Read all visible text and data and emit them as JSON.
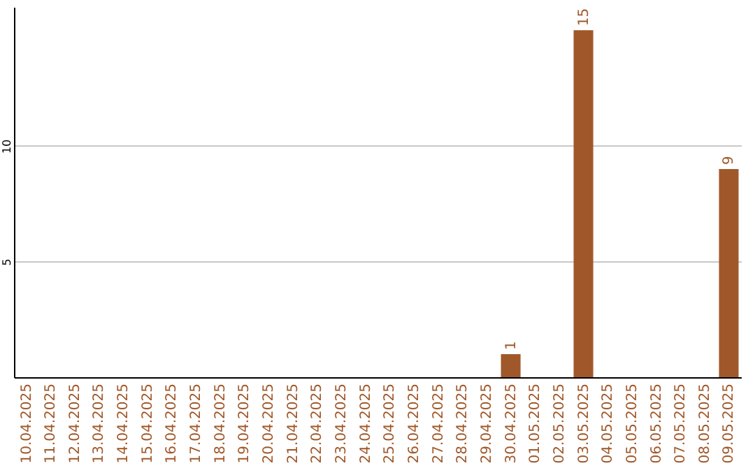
{
  "chart_data": {
    "type": "bar",
    "categories": [
      "10.04.2025",
      "11.04.2025",
      "12.04.2025",
      "13.04.2025",
      "14.04.2025",
      "15.04.2025",
      "16.04.2025",
      "17.04.2025",
      "18.04.2025",
      "19.04.2025",
      "20.04.2025",
      "21.04.2025",
      "22.04.2025",
      "23.04.2025",
      "24.04.2025",
      "25.04.2025",
      "26.04.2025",
      "27.04.2025",
      "28.04.2025",
      "29.04.2025",
      "30.04.2025",
      "01.05.2025",
      "02.05.2025",
      "03.05.2025",
      "04.05.2025",
      "05.05.2025",
      "06.05.2025",
      "07.05.2025",
      "08.05.2025",
      "09.05.2025"
    ],
    "values": [
      0,
      0,
      0,
      0,
      0,
      0,
      0,
      0,
      0,
      0,
      0,
      0,
      0,
      0,
      0,
      0,
      0,
      0,
      0,
      0,
      1,
      0,
      0,
      15,
      0,
      0,
      0,
      0,
      0,
      9
    ],
    "value_labels": [
      null,
      null,
      null,
      null,
      null,
      null,
      null,
      null,
      null,
      null,
      null,
      null,
      null,
      null,
      null,
      null,
      null,
      null,
      null,
      null,
      "1",
      null,
      null,
      "15",
      null,
      null,
      null,
      null,
      null,
      "9"
    ],
    "color": "#a0582a",
    "ylim": [
      0,
      16
    ],
    "yticks": [
      5,
      10
    ],
    "grid": "y"
  }
}
